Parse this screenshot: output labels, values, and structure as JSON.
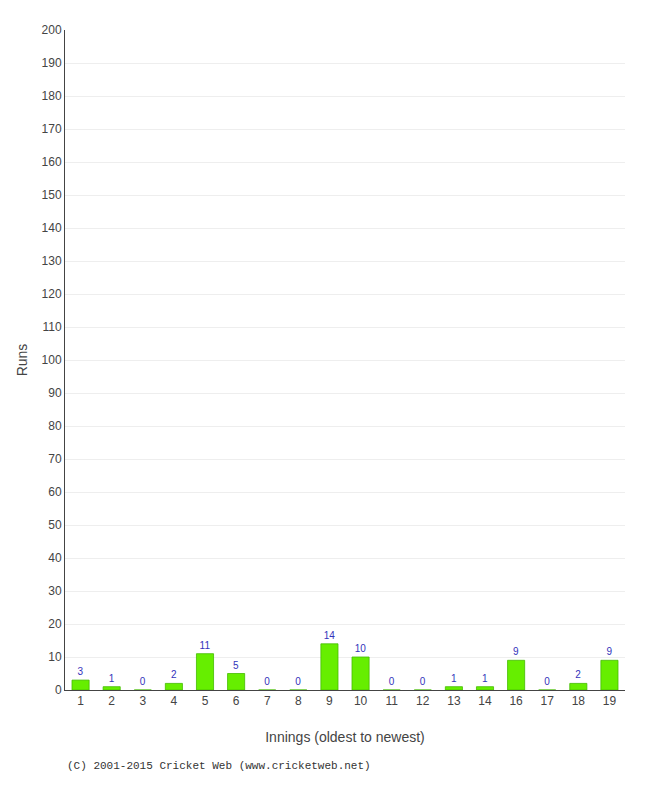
{
  "chart_data": {
    "type": "bar",
    "categories": [
      "1",
      "2",
      "3",
      "4",
      "5",
      "6",
      "7",
      "8",
      "9",
      "10",
      "11",
      "12",
      "13",
      "14",
      "16",
      "17",
      "18",
      "19"
    ],
    "values": [
      3,
      1,
      0,
      2,
      11,
      5,
      0,
      0,
      14,
      10,
      0,
      0,
      1,
      1,
      9,
      0,
      2,
      9
    ],
    "color": "#66ee00",
    "xlabel": "Innings (oldest to newest)",
    "ylabel": "Runs",
    "ylim": [
      0,
      200
    ],
    "yticks": [
      0,
      10,
      20,
      30,
      40,
      50,
      60,
      70,
      80,
      90,
      100,
      110,
      120,
      130,
      140,
      150,
      160,
      170,
      180,
      190,
      200
    ],
    "grid": true,
    "data_labels": true,
    "annotations": [
      "(C) 2001-2015 Cricket Web (www.cricketweb.net)"
    ]
  }
}
